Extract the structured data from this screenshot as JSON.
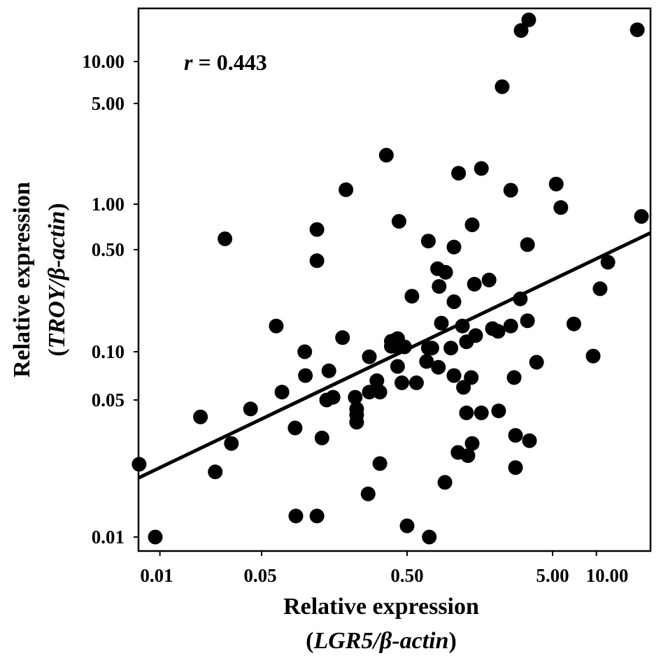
{
  "chart_data": {
    "type": "scatter",
    "scale": "log-log",
    "xlabel": {
      "line1": "Relative expression",
      "line2_open": "(",
      "line2_italic": "LGR5/β-actin",
      "line2_close": ")"
    },
    "ylabel": {
      "line1": "Relative expression",
      "line2_open": "(",
      "line2_italic": "TROY/β-actin",
      "line2_close": ")"
    },
    "annotation": {
      "symbol": "r",
      "text": " = 0.443"
    },
    "x_ticks": [
      {
        "value": 0.01,
        "label": "0.01"
      },
      {
        "value": 0.05,
        "label": "0.05"
      },
      {
        "value": 0.5,
        "label": "0.50"
      },
      {
        "value": 5,
        "label": "5.00"
      },
      {
        "value": 10,
        "label": "10.00"
      }
    ],
    "y_ticks": [
      {
        "value": 0.01,
        "label": "0.01"
      },
      {
        "value": 0.05,
        "label": "0.05"
      },
      {
        "value": 0.1,
        "label": "0.10"
      },
      {
        "value": 0.5,
        "label": "0.50"
      },
      {
        "value": 1,
        "label": "1.00"
      },
      {
        "value": 5,
        "label": "5.00"
      },
      {
        "value": 10,
        "label": "10.00"
      }
    ],
    "xlim": [
      0.0071,
      23.5
    ],
    "ylim": [
      0.0075,
      22
    ],
    "grid": false,
    "fit_line": {
      "x": [
        0.0071,
        23.5
      ],
      "y": [
        0.02,
        0.645
      ]
    },
    "points": [
      [
        0.0072,
        0.0235
      ],
      [
        0.0093,
        0.01
      ],
      [
        0.019,
        0.041
      ],
      [
        0.024,
        0.0215
      ],
      [
        0.028,
        0.59
      ],
      [
        0.031,
        0.03
      ],
      [
        0.042,
        0.045
      ],
      [
        0.063,
        0.15
      ],
      [
        0.069,
        0.056
      ],
      [
        0.085,
        0.036
      ],
      [
        0.086,
        0.0128
      ],
      [
        0.099,
        0.1
      ],
      [
        0.1,
        0.071
      ],
      [
        0.12,
        0.68
      ],
      [
        0.12,
        0.42
      ],
      [
        0.12,
        0.0128
      ],
      [
        0.13,
        0.032
      ],
      [
        0.145,
        0.076
      ],
      [
        0.14,
        0.05
      ],
      [
        0.155,
        0.052
      ],
      [
        0.18,
        0.125
      ],
      [
        0.19,
        1.26
      ],
      [
        0.22,
        0.052
      ],
      [
        0.225,
        0.045
      ],
      [
        0.225,
        0.042
      ],
      [
        0.225,
        0.0385
      ],
      [
        0.27,
        0.0166
      ],
      [
        0.275,
        0.093
      ],
      [
        0.275,
        0.056
      ],
      [
        0.31,
        0.066
      ],
      [
        0.325,
        0.056
      ],
      [
        0.325,
        0.0237
      ],
      [
        0.36,
        2.19
      ],
      [
        0.39,
        0.118
      ],
      [
        0.39,
        0.109
      ],
      [
        0.42,
        0.109
      ],
      [
        0.43,
        0.123
      ],
      [
        0.43,
        0.081
      ],
      [
        0.44,
        0.77
      ],
      [
        0.46,
        0.064
      ],
      [
        0.48,
        0.108
      ],
      [
        0.5,
        0.0114
      ],
      [
        0.54,
        0.24
      ],
      [
        0.58,
        0.064
      ],
      [
        0.7,
        0.57
      ],
      [
        0.68,
        0.087
      ],
      [
        0.7,
        0.106
      ],
      [
        0.71,
        0.01
      ],
      [
        0.74,
        0.106
      ],
      [
        0.81,
        0.37
      ],
      [
        0.82,
        0.08
      ],
      [
        0.83,
        0.28
      ],
      [
        0.86,
        0.157
      ],
      [
        0.92,
        0.35
      ],
      [
        0.91,
        0.019
      ],
      [
        1.0,
        0.106
      ],
      [
        1.05,
        0.22
      ],
      [
        1.05,
        0.52
      ],
      [
        1.05,
        0.071
      ],
      [
        1.13,
        1.64
      ],
      [
        1.12,
        0.027
      ],
      [
        1.2,
        0.15
      ],
      [
        1.22,
        0.06
      ],
      [
        1.28,
        0.117
      ],
      [
        1.28,
        0.043
      ],
      [
        1.31,
        0.026
      ],
      [
        1.38,
        0.069
      ],
      [
        1.4,
        0.73
      ],
      [
        1.4,
        0.03
      ],
      [
        1.45,
        0.29
      ],
      [
        1.48,
        0.129
      ],
      [
        1.62,
        1.77
      ],
      [
        1.62,
        0.043
      ],
      [
        1.83,
        0.31
      ],
      [
        1.93,
        0.144
      ],
      [
        2.11,
        0.138
      ],
      [
        2.13,
        0.044
      ],
      [
        2.25,
        6.6
      ],
      [
        2.58,
        1.25
      ],
      [
        2.58,
        0.15
      ],
      [
        2.72,
        0.069
      ],
      [
        2.78,
        0.033
      ],
      [
        2.78,
        0.0226
      ],
      [
        3.04,
        16.7
      ],
      [
        3.0,
        0.23
      ],
      [
        3.36,
        0.54
      ],
      [
        3.36,
        0.163
      ],
      [
        3.43,
        19.9
      ],
      [
        3.47,
        0.031
      ],
      [
        3.88,
        0.086
      ],
      [
        5.3,
        1.38
      ],
      [
        5.7,
        0.95
      ],
      [
        7.0,
        0.155
      ],
      [
        9.5,
        0.094
      ],
      [
        10.6,
        0.27
      ],
      [
        12.0,
        0.41
      ],
      [
        19.1,
        16.9
      ],
      [
        20.4,
        0.83
      ]
    ]
  }
}
